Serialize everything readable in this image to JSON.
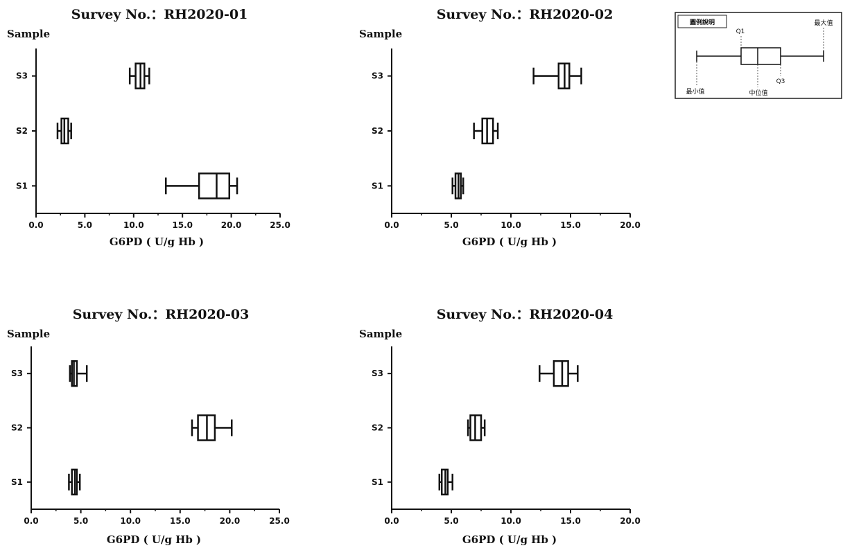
{
  "chart_data": [
    {
      "type": "boxplot",
      "orientation": "horizontal",
      "title": "Survey No.：RH2020-01",
      "ylabel": "Sample",
      "xlabel": "G6PD ( U/g Hb )",
      "xlim": [
        0,
        25
      ],
      "xticks": [
        "0.0",
        "5.0",
        "10.0",
        "15.0",
        "20.0",
        "25.0"
      ],
      "categories": [
        "S1",
        "S2",
        "S3"
      ],
      "boxes": [
        {
          "label": "S1",
          "min": 13.3,
          "q1": 16.7,
          "median": 18.5,
          "q3": 19.8,
          "max": 20.6
        },
        {
          "label": "S2",
          "min": 2.2,
          "q1": 2.6,
          "median": 2.9,
          "q3": 3.3,
          "max": 3.6
        },
        {
          "label": "S3",
          "min": 9.6,
          "q1": 10.2,
          "median": 10.7,
          "q3": 11.1,
          "max": 11.6
        }
      ]
    },
    {
      "type": "boxplot",
      "orientation": "horizontal",
      "title": "Survey No.：RH2020-02",
      "ylabel": "Sample",
      "xlabel": "G6PD ( U/g Hb )",
      "xlim": [
        0,
        20
      ],
      "xticks": [
        "0.0",
        "5.0",
        "10.0",
        "15.0",
        "20.0"
      ],
      "categories": [
        "S1",
        "S2",
        "S3"
      ],
      "boxes": [
        {
          "label": "S1",
          "min": 5.1,
          "q1": 5.35,
          "median": 5.6,
          "q3": 5.8,
          "max": 6.0
        },
        {
          "label": "S2",
          "min": 6.9,
          "q1": 7.6,
          "median": 8.0,
          "q3": 8.5,
          "max": 8.9
        },
        {
          "label": "S3",
          "min": 11.9,
          "q1": 14.0,
          "median": 14.5,
          "q3": 14.9,
          "max": 15.9
        }
      ]
    },
    {
      "type": "boxplot",
      "orientation": "horizontal",
      "title": "Survey No.：RH2020-03",
      "ylabel": "Sample",
      "xlabel": "G6PD ( U/g Hb )",
      "xlim": [
        0,
        25
      ],
      "xticks": [
        "0.0",
        "5.0",
        "10.0",
        "15.0",
        "20.0",
        "25.0"
      ],
      "categories": [
        "S1",
        "S2",
        "S3"
      ],
      "boxes": [
        {
          "label": "S1",
          "min": 3.8,
          "q1": 4.1,
          "median": 4.4,
          "q3": 4.6,
          "max": 4.9
        },
        {
          "label": "S2",
          "min": 16.2,
          "q1": 16.8,
          "median": 17.7,
          "q3": 18.5,
          "max": 20.2
        },
        {
          "label": "S3",
          "min": 3.9,
          "q1": 4.1,
          "median": 4.3,
          "q3": 4.6,
          "max": 5.6
        }
      ]
    },
    {
      "type": "boxplot",
      "orientation": "horizontal",
      "title": "Survey No.：RH2020-04",
      "ylabel": "Sample",
      "xlabel": "G6PD ( U/g Hb )",
      "xlim": [
        0,
        20
      ],
      "xticks": [
        "0.0",
        "5.0",
        "10.0",
        "15.0",
        "20.0"
      ],
      "categories": [
        "S1",
        "S2",
        "S3"
      ],
      "boxes": [
        {
          "label": "S1",
          "min": 4.0,
          "q1": 4.2,
          "median": 4.5,
          "q3": 4.7,
          "max": 5.1
        },
        {
          "label": "S2",
          "min": 6.4,
          "q1": 6.6,
          "median": 7.0,
          "q3": 7.5,
          "max": 7.8
        },
        {
          "label": "S3",
          "min": 12.4,
          "q1": 13.6,
          "median": 14.3,
          "q3": 14.8,
          "max": 15.6
        }
      ]
    }
  ],
  "legend": {
    "title": "圖例說明",
    "labels": {
      "min": "最小值",
      "q1": "Q1",
      "median": "中位值",
      "q3": "Q3",
      "max": "最大值"
    }
  }
}
